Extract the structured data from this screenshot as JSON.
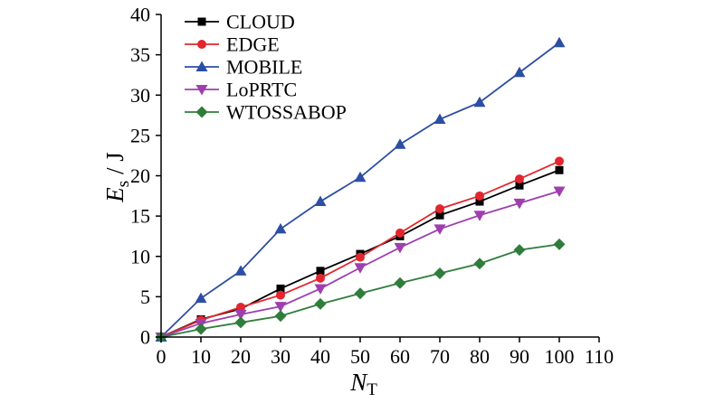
{
  "chart_data": {
    "type": "line",
    "xlabel": {
      "main": "N",
      "sub": "T"
    },
    "ylabel": {
      "main": "E",
      "sub": "s",
      "unit": " / J"
    },
    "xlim": [
      0,
      110
    ],
    "ylim": [
      0,
      40
    ],
    "xticks": [
      0,
      10,
      20,
      30,
      40,
      50,
      60,
      70,
      80,
      90,
      100,
      110
    ],
    "yticks": [
      0,
      5,
      10,
      15,
      20,
      25,
      30,
      35,
      40
    ],
    "grid": false,
    "legend_position": "top-left",
    "x": [
      0,
      10,
      20,
      30,
      40,
      50,
      60,
      70,
      80,
      90,
      100
    ],
    "series": [
      {
        "name": "CLOUD",
        "color": "#000000",
        "marker": "square",
        "values": [
          0,
          2.2,
          3.5,
          6.0,
          8.2,
          10.3,
          12.5,
          15.1,
          16.8,
          18.8,
          20.7
        ]
      },
      {
        "name": "EDGE",
        "color": "#e3262e",
        "marker": "circle",
        "values": [
          0,
          2.1,
          3.7,
          5.2,
          7.3,
          9.9,
          12.9,
          15.9,
          17.5,
          19.6,
          21.8
        ]
      },
      {
        "name": "MOBILE",
        "color": "#2c4ea3",
        "marker": "triangle-up",
        "values": [
          0,
          4.8,
          8.2,
          13.4,
          16.8,
          19.8,
          23.9,
          27.0,
          29.1,
          32.8,
          36.5
        ]
      },
      {
        "name": "LoPRTC",
        "color": "#9e3fae",
        "marker": "triangle-down",
        "values": [
          0,
          1.7,
          2.8,
          3.8,
          6.0,
          8.6,
          11.1,
          13.4,
          15.1,
          16.6,
          18.1
        ]
      },
      {
        "name": "WTOSSABOP",
        "color": "#2f7d3b",
        "marker": "diamond",
        "values": [
          0,
          1.0,
          1.8,
          2.6,
          4.1,
          5.4,
          6.7,
          7.9,
          9.1,
          10.8,
          11.5
        ]
      }
    ]
  }
}
